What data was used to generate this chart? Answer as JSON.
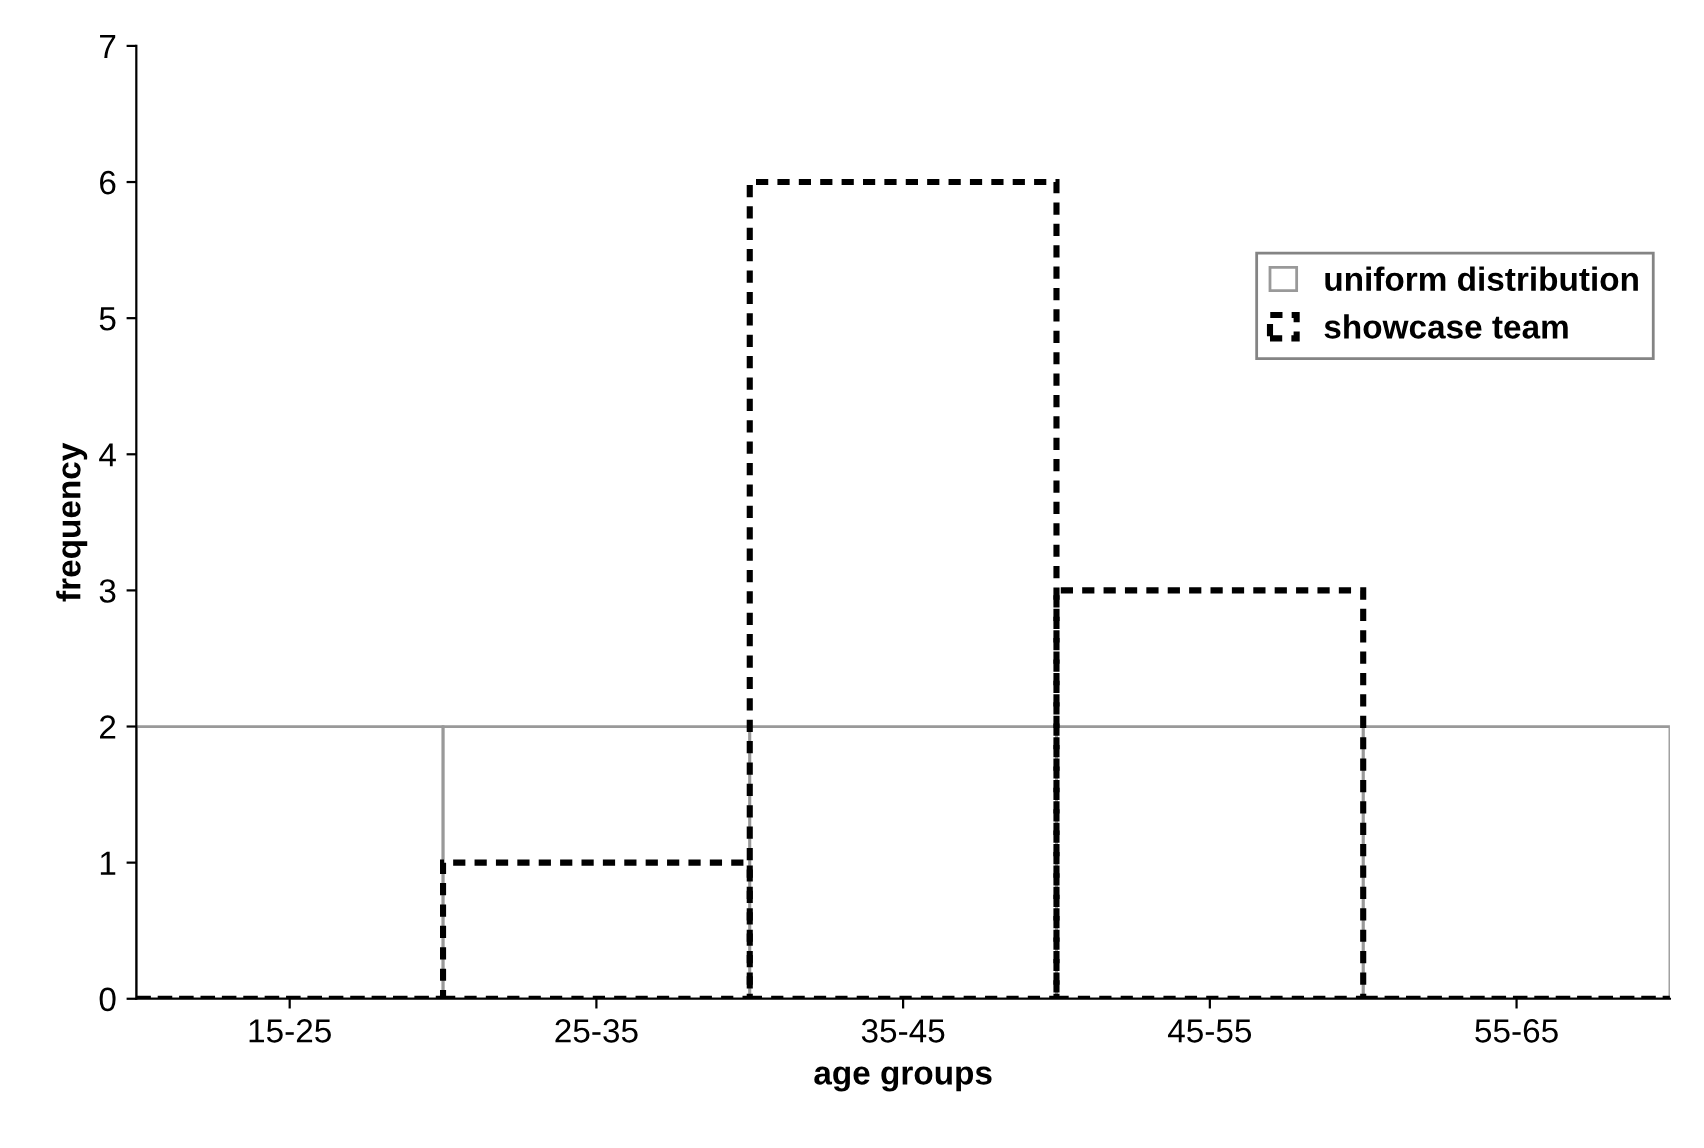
{
  "chart_data": {
    "type": "bar",
    "xlabel": "age groups",
    "ylabel": "frequency",
    "categories": [
      "15-25",
      "25-35",
      "35-45",
      "45-55",
      "55-65"
    ],
    "series": [
      {
        "name": "uniform distribution",
        "color": "#999999",
        "values": [
          2,
          2,
          2,
          2,
          2
        ],
        "line_style": "solid"
      },
      {
        "name": "showcase team",
        "color": "#000000",
        "values": [
          0,
          1,
          6,
          3,
          0
        ],
        "line_style": "dotted"
      }
    ],
    "ylim": [
      0,
      7
    ],
    "yticks": [
      0,
      1,
      2,
      3,
      4,
      5,
      6,
      7
    ],
    "grid": false,
    "legend": "top right"
  }
}
